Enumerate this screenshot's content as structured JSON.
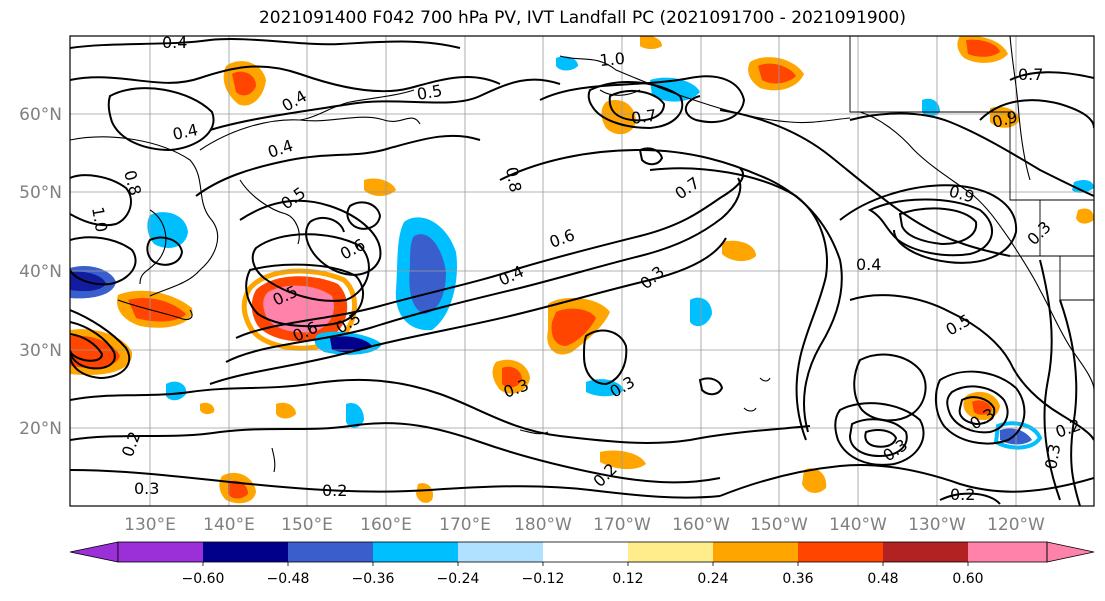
{
  "title": "2021091400 F042 700 hPa PV, IVT Landfall PC (2021091700 - 2021091900)",
  "lon_ticks": [
    "130°E",
    "140°E",
    "150°E",
    "160°E",
    "170°E",
    "180°W",
    "170°W",
    "160°W",
    "150°W",
    "140°W",
    "130°W",
    "120°W"
  ],
  "lat_ticks": [
    "60°N",
    "50°N",
    "40°N",
    "30°N",
    "20°N"
  ],
  "colorbar": {
    "ticks": [
      "−0.60",
      "−0.48",
      "−0.36",
      "−0.24",
      "−0.12",
      "0.12",
      "0.24",
      "0.36",
      "0.48",
      "0.60"
    ],
    "colors": [
      "#9b30d8",
      "#00008b",
      "#3a5fcd",
      "#00bfff",
      "#b0e2ff",
      "#ffffff",
      "#ffec8b",
      "#ffa500",
      "#ff4500",
      "#b22222",
      "#ff82ab"
    ],
    "under_color": "#9b30d8",
    "over_color": "#ff82ab"
  },
  "contour_labels": [
    "0.4",
    "0.4",
    "0.4",
    "0.4",
    "0.5",
    "0.5",
    "0.5",
    "0.5",
    "0.5",
    "0.6",
    "0.6",
    "0.6",
    "0.7",
    "0.7",
    "0.7",
    "0.8",
    "0.8",
    "1.0",
    "1.0",
    "0.9",
    "0.9",
    "0.3",
    "0.3",
    "0.3",
    "0.3",
    "0.3",
    "0.3",
    "0.3",
    "0.2",
    "0.2",
    "0.2",
    "0.2",
    "0.2",
    "0.4",
    "0.4",
    "0.3"
  ]
}
